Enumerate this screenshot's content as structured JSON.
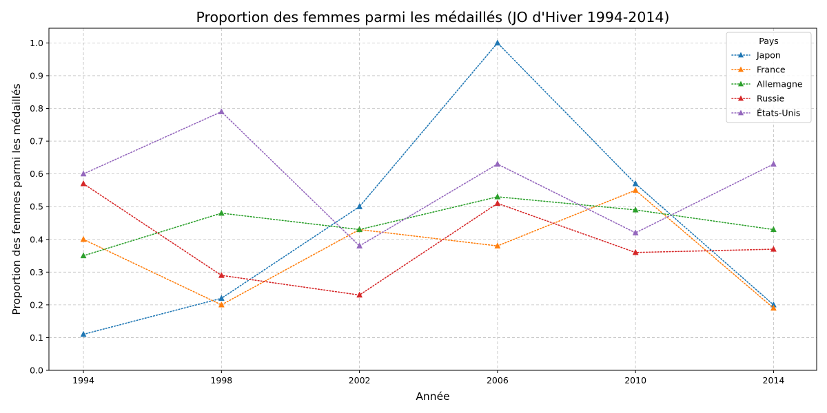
{
  "chart_data": {
    "type": "line",
    "title": "Proportion des femmes parmi les médaillés (JO d'Hiver 1994-2014)",
    "xlabel": "Année",
    "ylabel": "Proportion des femmes parmi les médaillés",
    "x": [
      1994,
      1998,
      2002,
      2006,
      2010,
      2014
    ],
    "x_tick_labels": [
      "1994",
      "1998",
      "2002",
      "2006",
      "2010",
      "2014"
    ],
    "xlim": [
      1993,
      2015.25
    ],
    "ylim": [
      0.0,
      1.045
    ],
    "y_ticks": [
      0.0,
      0.1,
      0.2,
      0.3,
      0.4,
      0.5,
      0.6,
      0.7,
      0.8,
      0.9,
      1.0
    ],
    "y_tick_labels": [
      "0.0",
      "0.1",
      "0.2",
      "0.3",
      "0.4",
      "0.5",
      "0.6",
      "0.7",
      "0.8",
      "0.9",
      "1.0"
    ],
    "grid": true,
    "legend_title": "Pays",
    "legend_position": "top-right",
    "series": [
      {
        "name": "Japon",
        "color": "#1f77b4",
        "values": [
          0.11,
          0.22,
          0.5,
          1.0,
          0.57,
          0.2
        ]
      },
      {
        "name": "France",
        "color": "#ff7f0e",
        "values": [
          0.4,
          0.2,
          0.43,
          0.38,
          0.55,
          0.19
        ]
      },
      {
        "name": "Allemagne",
        "color": "#2ca02c",
        "values": [
          0.35,
          0.48,
          0.43,
          0.53,
          0.49,
          0.43
        ]
      },
      {
        "name": "Russie",
        "color": "#d62728",
        "values": [
          0.57,
          0.29,
          0.23,
          0.51,
          0.36,
          0.37
        ]
      },
      {
        "name": "États-Unis",
        "color": "#9467bd",
        "values": [
          0.6,
          0.79,
          0.38,
          0.63,
          0.42,
          0.63
        ]
      }
    ],
    "line_style": "dotted",
    "marker": "triangle-up"
  }
}
